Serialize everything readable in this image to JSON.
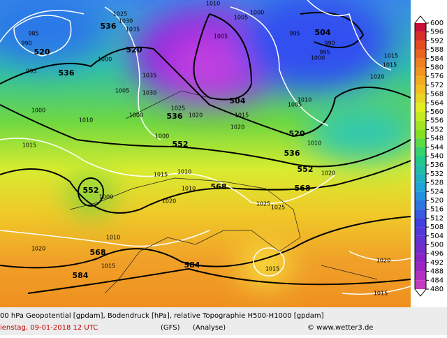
{
  "colorbar": {
    "labels": [
      600,
      596,
      592,
      588,
      584,
      580,
      576,
      572,
      568,
      564,
      560,
      556,
      552,
      548,
      544,
      540,
      536,
      532,
      528,
      524,
      520,
      516,
      512,
      508,
      504,
      500,
      496,
      492,
      488,
      484,
      480
    ]
  },
  "height_labels": [
    536,
    520,
    536,
    520,
    504,
    520,
    536,
    552,
    536,
    552,
    568,
    568,
    552,
    568,
    584,
    584,
    504
  ],
  "pressure_labels": [
    1025,
    1030,
    1035,
    985,
    990,
    995,
    1000,
    1005,
    1035,
    1030,
    1000,
    1025,
    1020,
    1000,
    1015,
    1010,
    1010,
    1020,
    1000,
    1010,
    1015,
    1020,
    1015,
    1010,
    1000,
    1010,
    1005,
    1000,
    1005,
    995,
    995,
    1000,
    990,
    1005,
    1010,
    1015,
    1020,
    1025,
    1025,
    1015,
    1020,
    1015,
    1020,
    1010,
    1015,
    1015,
    1020
  ],
  "footer": {
    "description": "00 hPa Geopotential [gpdam], Bodendruck [hPa], relative Topographie H500-H1000 [gpdam]",
    "date": "ienstag, 09-01-2018  12 UTC",
    "model": "(GFS)",
    "run": "(Analyse)",
    "credit": "© www.wetter3.de"
  }
}
